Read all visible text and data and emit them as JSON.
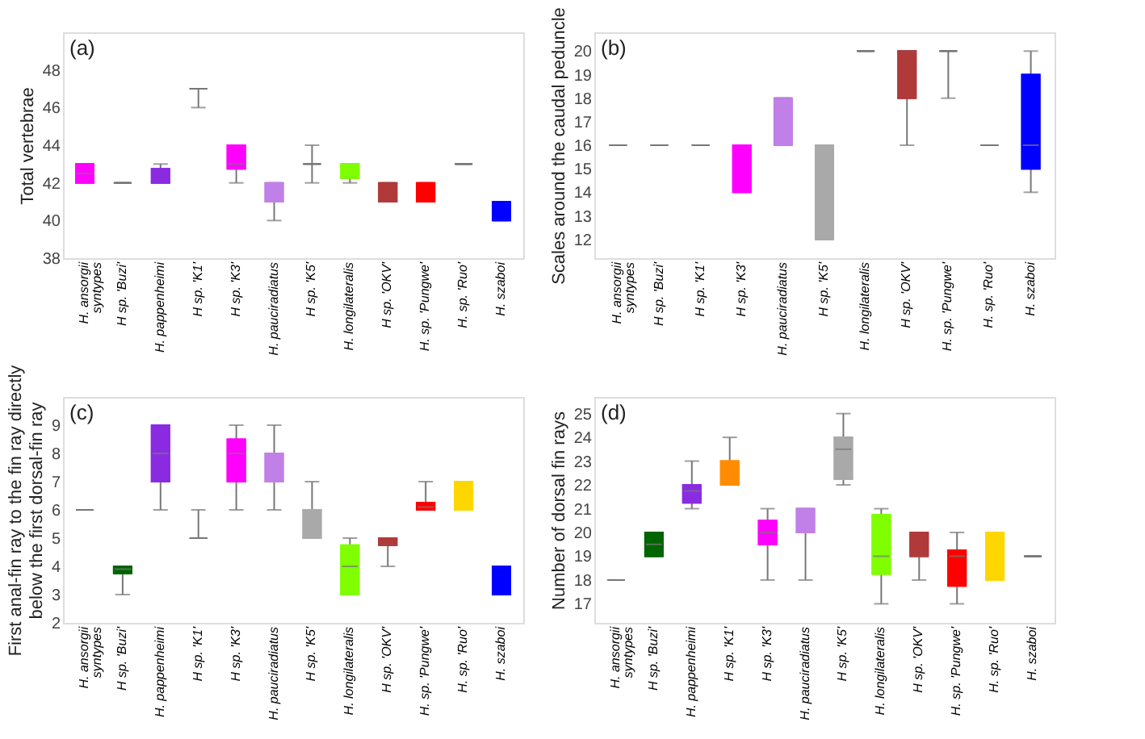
{
  "chart_data": [
    {
      "type": "box",
      "title": "(a)",
      "ylabel": "Total vertebrae",
      "ylim": [
        38,
        50
      ],
      "yticks": [
        38,
        40,
        42,
        44,
        46,
        48
      ],
      "grid": false,
      "categories": [
        "H. ansorgii\nsyntypes",
        "H sp. 'Buzi'",
        "H. pappenheimi",
        "H sp. 'K1'",
        "H sp. 'K3'",
        "H. pauciradiatus",
        "H sp. 'K5'",
        "H. longilateralis",
        "H sp. 'OKV'",
        "H. sp. 'Pungwe'",
        "H. sp. 'Ruo'",
        "H. szaboi"
      ],
      "colors": [
        "#ff00ff",
        "#777777",
        "#8a2be2",
        "#777777",
        "#ff00ff",
        "#c080e8",
        "#777777",
        "#7fff00",
        "#b03a3a",
        "#ff0000",
        "#777777",
        "#0000ff"
      ],
      "boxes": [
        {
          "low": 42,
          "q1": 42,
          "median": 42.5,
          "q3": 43,
          "high": 43
        },
        {
          "low": 42,
          "q1": 42,
          "median": 42,
          "q3": 42,
          "high": 42
        },
        {
          "low": 42,
          "q1": 42,
          "median": 42,
          "q3": 42.75,
          "high": 43
        },
        {
          "low": 46,
          "q1": 47,
          "median": 47,
          "q3": 47,
          "high": 47
        },
        {
          "low": 42,
          "q1": 42.75,
          "median": 43,
          "q3": 44,
          "high": 44
        },
        {
          "low": 40,
          "q1": 41,
          "median": 41,
          "q3": 42,
          "high": 42
        },
        {
          "low": 42,
          "q1": 43,
          "median": 43,
          "q3": 43,
          "high": 44
        },
        {
          "low": 42,
          "q1": 42.25,
          "median": 42.25,
          "q3": 43,
          "high": 43
        },
        {
          "low": 41,
          "q1": 41,
          "median": 41,
          "q3": 42,
          "high": 42
        },
        {
          "low": 41,
          "q1": 41,
          "median": 41,
          "q3": 42,
          "high": 42
        },
        {
          "low": 43,
          "q1": 43,
          "median": 43,
          "q3": 43,
          "high": 43
        },
        {
          "low": 40,
          "q1": 40,
          "median": 40,
          "q3": 41,
          "high": 41
        }
      ]
    },
    {
      "type": "box",
      "title": "(b)",
      "ylabel": "Scales around the caudal peduncle",
      "ylim": [
        11.2,
        20.8
      ],
      "yticks": [
        12,
        13,
        14,
        15,
        16,
        17,
        18,
        19,
        20
      ],
      "grid": false,
      "categories": [
        "H. ansorgii\nsyntypes",
        "H sp. 'Buzi'",
        "H sp. 'K1'",
        "H sp. 'K3'",
        "H. pauciradiatus",
        "H sp. 'K5'",
        "H. longilateralis",
        "H sp. 'OKV'",
        "H. sp. 'Pungwe'",
        "H. sp. 'Ruo'",
        "H. szaboi"
      ],
      "colors": [
        "#777777",
        "#777777",
        "#777777",
        "#ff00ff",
        "#c080e8",
        "#a9a9a9",
        "#777777",
        "#b03a3a",
        "#777777",
        "#777777",
        "#0000ff"
      ],
      "boxes": [
        {
          "low": 16,
          "q1": 16,
          "median": 16,
          "q3": 16,
          "high": 16
        },
        {
          "low": 16,
          "q1": 16,
          "median": 16,
          "q3": 16,
          "high": 16
        },
        {
          "low": 16,
          "q1": 16,
          "median": 16,
          "q3": 16,
          "high": 16
        },
        {
          "low": 14,
          "q1": 14,
          "median": 16,
          "q3": 16,
          "high": 16
        },
        {
          "low": 16,
          "q1": 16,
          "median": 18,
          "q3": 18,
          "high": 18
        },
        {
          "low": 12,
          "q1": 12,
          "median": 16,
          "q3": 16,
          "high": 16
        },
        {
          "low": 20,
          "q1": 20,
          "median": 20,
          "q3": 20,
          "high": 20
        },
        {
          "low": 16,
          "q1": 18,
          "median": 20,
          "q3": 20,
          "high": 20
        },
        {
          "low": 18,
          "q1": 20,
          "median": 20,
          "q3": 20,
          "high": 20
        },
        {
          "low": 16,
          "q1": 16,
          "median": 16,
          "q3": 16,
          "high": 16
        },
        {
          "low": 14,
          "q1": 15,
          "median": 16,
          "q3": 19,
          "high": 20
        }
      ]
    },
    {
      "type": "box",
      "title": "(c)",
      "ylabel": "First anal-fin ray to the fin ray directly\nbelow the first dorsal-fin ray",
      "ylim": [
        2,
        10
      ],
      "yticks": [
        2,
        3,
        4,
        5,
        6,
        7,
        8,
        9
      ],
      "grid": false,
      "categories": [
        "H. ansorgii\nsyntypes",
        "H sp. 'Buzi'",
        "H. pappenheimi",
        "H sp. 'K1'",
        "H sp. 'K3'",
        "H. pauciradiatus",
        "H sp. 'K5'",
        "H. longilateralis",
        "H sp. 'OKV'",
        "H. sp. 'Pungwe'",
        "H. sp. 'Ruo'",
        "H. szaboi"
      ],
      "colors": [
        "#777777",
        "#006400",
        "#8a2be2",
        "#777777",
        "#ff00ff",
        "#c080e8",
        "#a9a9a9",
        "#7fff00",
        "#b03a3a",
        "#ff0000",
        "#ffd700",
        "#0000ff"
      ],
      "boxes": [
        {
          "low": 6,
          "q1": 6,
          "median": 6,
          "q3": 6,
          "high": 6
        },
        {
          "low": 3,
          "q1": 3.75,
          "median": 3.9,
          "q3": 4,
          "high": 4
        },
        {
          "low": 6,
          "q1": 7,
          "median": 8,
          "q3": 9,
          "high": 9
        },
        {
          "low": 5,
          "q1": 5,
          "median": 5,
          "q3": 5,
          "high": 6
        },
        {
          "low": 6,
          "q1": 7,
          "median": 8,
          "q3": 8.5,
          "high": 9
        },
        {
          "low": 6,
          "q1": 7,
          "median": 7,
          "q3": 8,
          "high": 9
        },
        {
          "low": 5,
          "q1": 5,
          "median": 5,
          "q3": 6,
          "high": 7
        },
        {
          "low": 3,
          "q1": 3,
          "median": 4,
          "q3": 4.75,
          "high": 5
        },
        {
          "low": 4,
          "q1": 4.75,
          "median": 4.75,
          "q3": 5,
          "high": 5
        },
        {
          "low": 6,
          "q1": 6,
          "median": 6.1,
          "q3": 6.25,
          "high": 7
        },
        {
          "low": 6,
          "q1": 6,
          "median": 6,
          "q3": 7,
          "high": 7
        },
        {
          "low": 3,
          "q1": 3,
          "median": 3,
          "q3": 4,
          "high": 4
        }
      ]
    },
    {
      "type": "box",
      "title": "(d)",
      "ylabel": "Number of dorsal fin rays",
      "ylim": [
        16.2,
        25.7
      ],
      "yticks": [
        17,
        18,
        19,
        20,
        21,
        22,
        23,
        24,
        25
      ],
      "grid": false,
      "categories": [
        "H. ansorgii\nsyntypes",
        "H sp. 'Buzi'",
        "H. pappenheimi",
        "H sp. 'K1'",
        "H sp. 'K3'",
        "H. pauciradiatus",
        "H sp. 'K5'",
        "H. longilateralis",
        "H sp. 'OKV'",
        "H. sp. 'Pungwe'",
        "H. sp. 'Ruo'",
        "H. szaboi"
      ],
      "colors": [
        "#777777",
        "#006400",
        "#8a2be2",
        "#ff8c00",
        "#ff00ff",
        "#c080e8",
        "#a9a9a9",
        "#7fff00",
        "#b03a3a",
        "#ff0000",
        "#ffd700",
        "#777777"
      ],
      "boxes": [
        {
          "low": 18,
          "q1": 18,
          "median": 18,
          "q3": 18,
          "high": 18
        },
        {
          "low": 19,
          "q1": 19,
          "median": 19.5,
          "q3": 20,
          "high": 20
        },
        {
          "low": 21,
          "q1": 21.25,
          "median": 21.75,
          "q3": 22,
          "high": 23
        },
        {
          "low": 22,
          "q1": 22,
          "median": 22,
          "q3": 23,
          "high": 24
        },
        {
          "low": 18,
          "q1": 19.5,
          "median": 20,
          "q3": 20.5,
          "high": 21
        },
        {
          "low": 18,
          "q1": 20,
          "median": 20,
          "q3": 21,
          "high": 21
        },
        {
          "low": 22,
          "q1": 22.25,
          "median": 23.5,
          "q3": 24,
          "high": 25
        },
        {
          "low": 17,
          "q1": 18.25,
          "median": 19,
          "q3": 20.75,
          "high": 21
        },
        {
          "low": 18,
          "q1": 19,
          "median": 19,
          "q3": 20,
          "high": 20
        },
        {
          "low": 17,
          "q1": 17.75,
          "median": 19,
          "q3": 19.25,
          "high": 20
        },
        {
          "low": 18,
          "q1": 18,
          "median": 18,
          "q3": 20,
          "high": 20
        },
        {
          "low": 19,
          "q1": 19,
          "median": 19,
          "q3": 19,
          "high": 19
        }
      ]
    }
  ]
}
